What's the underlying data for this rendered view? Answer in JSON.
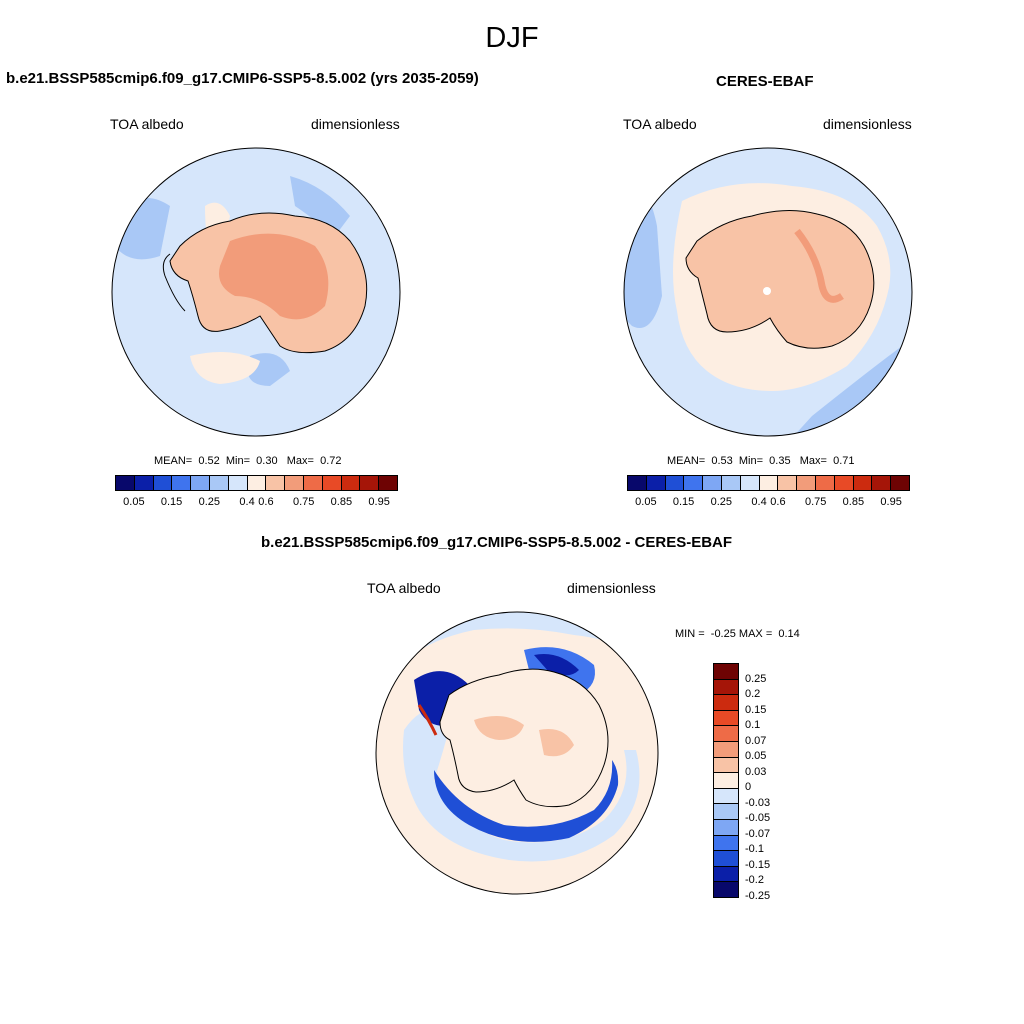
{
  "season": "DJF",
  "colors": {
    "abs_scale": [
      "#08086b",
      "#0b1fa8",
      "#1f4fd6",
      "#3f74ee",
      "#7ea7f4",
      "#a9c8f6",
      "#d6e6fb",
      "#fdeee2",
      "#f8c3a6",
      "#f29c7a",
      "#ee6b47",
      "#e84a26",
      "#cc2b0f",
      "#a51508",
      "#6e0303"
    ],
    "diff_scale": [
      "#6e0303",
      "#a51508",
      "#cc2b0f",
      "#e84a26",
      "#ee6b47",
      "#f29c7a",
      "#f8c3a6",
      "#fdeee2",
      "#d6e6fb",
      "#a9c8f6",
      "#7ea7f4",
      "#3f74ee",
      "#1f4fd6",
      "#0b1fa8",
      "#08086b"
    ]
  },
  "panels": {
    "model": {
      "title": "b.e21.BSSP585cmip6.f09_g17.CMIP6-SSP5-8.5.002 (yrs 2035-2059)",
      "variable": "TOA albedo",
      "units": "dimensionless",
      "mean_label": "MEAN=",
      "mean": "0.52",
      "min_label": "Min=",
      "min": "0.30",
      "max_label": "Max=",
      "max": "0.72",
      "colorbar_ticks": [
        "0.05",
        "0.15",
        "0.25",
        "0.4",
        "0.6",
        "0.75",
        "0.85",
        "0.95"
      ]
    },
    "obs": {
      "title": "CERES-EBAF",
      "variable": "TOA albedo",
      "units": "dimensionless",
      "mean_label": "MEAN=",
      "mean": "0.53",
      "min_label": "Min=",
      "min": "0.35",
      "max_label": "Max=",
      "max": "0.71",
      "colorbar_ticks": [
        "0.05",
        "0.15",
        "0.25",
        "0.4",
        "0.6",
        "0.75",
        "0.85",
        "0.95"
      ]
    },
    "diff": {
      "title": "b.e21.BSSP585cmip6.f09_g17.CMIP6-SSP5-8.5.002 - CERES-EBAF",
      "variable": "TOA albedo",
      "units": "dimensionless",
      "min_label": "MIN =",
      "min": "-0.25",
      "max_label": "MAX =",
      "max": "0.14",
      "colorbar_ticks": [
        "0.25",
        "0.2",
        "0.15",
        "0.1",
        "0.07",
        "0.05",
        "0.03",
        "0",
        "-0.03",
        "-0.05",
        "-0.07",
        "-0.1",
        "-0.15",
        "-0.2",
        "-0.25"
      ]
    }
  }
}
